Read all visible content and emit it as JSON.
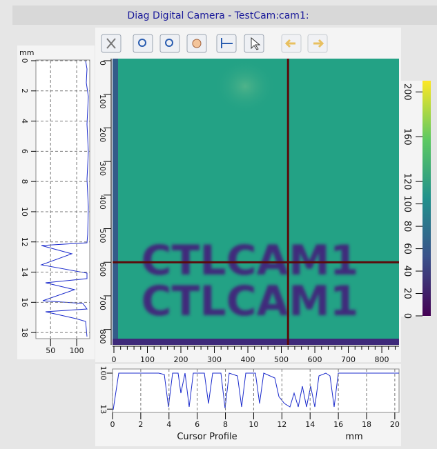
{
  "window": {
    "title": "Diag Digital Camera - TestCam:cam1:"
  },
  "image": {
    "text_lines": [
      "CTLCAM1",
      "CTLCAM1"
    ],
    "xlim": [
      0,
      870
    ],
    "ylim": [
      0,
      850
    ],
    "xticks": [
      0,
      100,
      200,
      300,
      400,
      500,
      600,
      700,
      800
    ],
    "yticks": [
      0,
      100,
      200,
      300,
      400,
      500,
      600,
      700,
      800
    ],
    "cursor": {
      "x": 520,
      "y": 600
    }
  },
  "colorbar": {
    "lim": [
      0,
      210
    ],
    "ticks": [
      0,
      20,
      40,
      60,
      80,
      100,
      120,
      160,
      200
    ]
  },
  "left_profile": {
    "unit": "mm",
    "ylim": [
      0,
      19
    ],
    "yticks": [
      0,
      2,
      4,
      6,
      8,
      10,
      12,
      14,
      16,
      18
    ],
    "xlim": [
      22,
      125
    ],
    "xticks": [
      50,
      100
    ]
  },
  "bottom_profile": {
    "title": "Cursor Profile",
    "unit": "mm",
    "xlim": [
      0,
      20.3
    ],
    "xticks": [
      0,
      2,
      4,
      6,
      8,
      10,
      12,
      14,
      16,
      18,
      20
    ],
    "ylim": [
      5,
      110
    ],
    "yticks": [
      100,
      13
    ]
  }
}
